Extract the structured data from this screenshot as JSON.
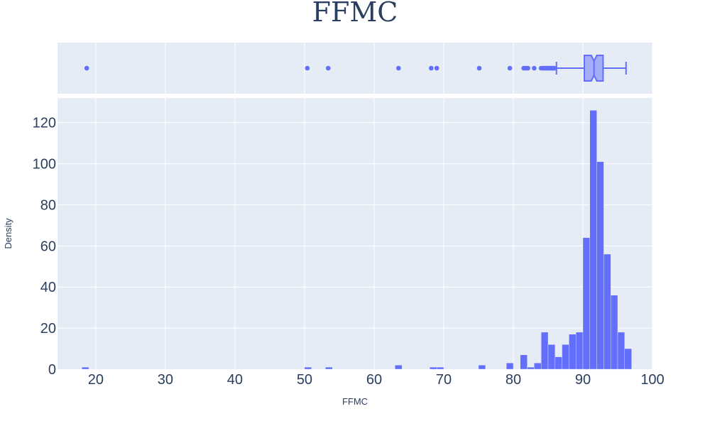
{
  "chart_data": {
    "type": "histogram",
    "title": "FFMC",
    "xlabel": "FFMC",
    "ylabel": "Density",
    "xlim": [
      14.5,
      100
    ],
    "ylim": [
      0,
      132
    ],
    "grid": true,
    "colors": {
      "bar": "#636efa",
      "plot_bg": "#e5ecf6",
      "grid": "#ffffff",
      "text": "#2a3f5f"
    },
    "x_ticks": [
      20,
      30,
      40,
      50,
      60,
      70,
      80,
      90,
      100
    ],
    "y_ticks": [
      0,
      20,
      40,
      60,
      80,
      100,
      120
    ],
    "bin_width": 1,
    "bins": [
      {
        "x": 18.5,
        "count": 1
      },
      {
        "x": 50.5,
        "count": 1
      },
      {
        "x": 53.5,
        "count": 1
      },
      {
        "x": 63.5,
        "count": 2
      },
      {
        "x": 68.5,
        "count": 1
      },
      {
        "x": 69.5,
        "count": 1
      },
      {
        "x": 75.5,
        "count": 2
      },
      {
        "x": 79.5,
        "count": 3
      },
      {
        "x": 81.5,
        "count": 7
      },
      {
        "x": 82.5,
        "count": 1
      },
      {
        "x": 83.5,
        "count": 3
      },
      {
        "x": 84.5,
        "count": 18
      },
      {
        "x": 85.5,
        "count": 12
      },
      {
        "x": 86.5,
        "count": 6
      },
      {
        "x": 87.5,
        "count": 12
      },
      {
        "x": 88.5,
        "count": 17
      },
      {
        "x": 89.5,
        "count": 18
      },
      {
        "x": 90.5,
        "count": 64
      },
      {
        "x": 91.5,
        "count": 126
      },
      {
        "x": 92.5,
        "count": 101
      },
      {
        "x": 93.5,
        "count": 56
      },
      {
        "x": 94.5,
        "count": 36
      },
      {
        "x": 95.5,
        "count": 18
      },
      {
        "x": 96.5,
        "count": 10
      }
    ],
    "box": {
      "q1": 90.2,
      "median": 91.6,
      "q3": 92.9,
      "notch_low": 91.2,
      "notch_high": 92.0,
      "lower_fence": 86.2,
      "upper_fence": 96.2,
      "outliers": [
        18.7,
        50.4,
        53.4,
        63.5,
        68.2,
        69.0,
        75.1,
        79.5,
        81.5,
        81.6,
        81.9,
        82.1,
        83.0,
        84.0,
        84.2,
        84.4,
        84.6,
        84.7,
        84.9,
        85.0,
        85.1,
        85.2,
        85.4,
        85.5,
        85.6,
        85.8,
        85.9
      ]
    }
  }
}
